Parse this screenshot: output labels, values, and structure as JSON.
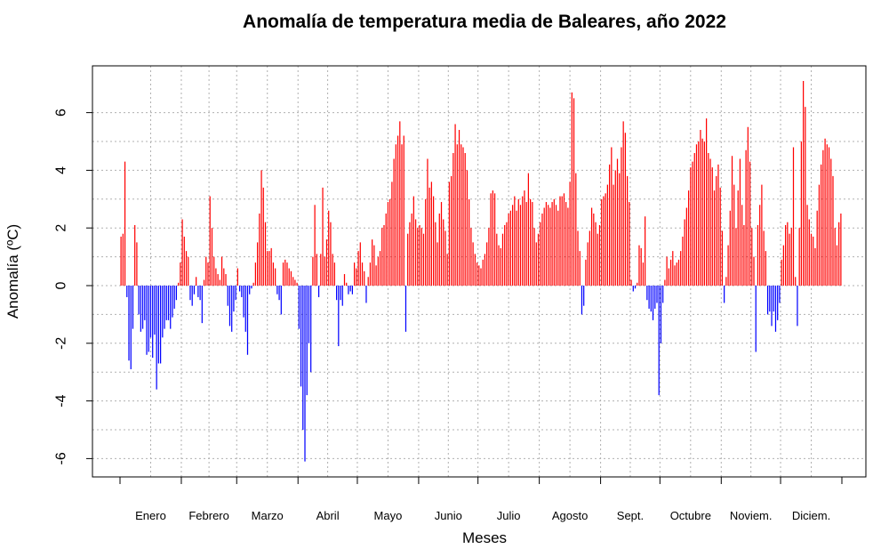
{
  "chart_data": {
    "type": "bar",
    "title": "Anomalía de temperatura media de Baleares, año 2022",
    "xlabel": "Meses",
    "ylabel": "Anomalía (ºC)",
    "ylim": [
      -6.5,
      7.3
    ],
    "yticks": [
      "-6",
      "-4",
      "-2",
      "0",
      "2",
      "4",
      "6"
    ],
    "grid": true,
    "positive_color": "#ff0000",
    "negative_color": "#0000ff",
    "months": [
      "Enero",
      "Febrero",
      "Marzo",
      "Abril",
      "Mayo",
      "Junio",
      "Julio",
      "Agosto",
      "Sept.",
      "Octubre",
      "Noviem.",
      "Diciem."
    ],
    "month_days": [
      31,
      28,
      31,
      30,
      31,
      30,
      31,
      31,
      30,
      31,
      30,
      31
    ],
    "series": [
      {
        "values": [
          1.7,
          1.8,
          4.3,
          -0.4,
          -2.6,
          -2.9,
          -1.5,
          2.1,
          1.5,
          -1.0,
          -1.6,
          -1.5,
          -1.2,
          -2.4,
          -2.3,
          -1.8,
          -2.5,
          -1.7,
          -3.6,
          -2.7,
          -2.7,
          -1.8,
          -1.5,
          -1.2,
          -1.2,
          -1.5,
          -1.1,
          -0.8,
          -0.5,
          0.1,
          0.8,
          2.3,
          1.7,
          1.2,
          1.0,
          -0.5,
          -0.7,
          -0.3,
          0.3,
          -0.4,
          -0.5,
          -1.3,
          0.2,
          1.0,
          0.8,
          3.1,
          2.0,
          1.0,
          0.6,
          0.4,
          0.2,
          1.0,
          0.6,
          0.4,
          -0.7,
          -1.4,
          -1.6,
          -0.9,
          -0.5,
          0.6,
          -0.2,
          -0.4,
          -1.1,
          -1.6,
          -2.4,
          -0.3,
          -0.1,
          0.1,
          0.8,
          1.5,
          2.5,
          4.0,
          3.4,
          2.2,
          1.2,
          1.2,
          1.3,
          0.8,
          0.6,
          -0.3,
          -0.5,
          -1.0,
          0.8,
          0.9,
          0.8,
          0.6,
          0.5,
          0.3,
          0.2,
          0.1,
          -1.5,
          -3.5,
          -5.0,
          -6.1,
          -3.8,
          -2.0,
          -3.0,
          1.0,
          2.8,
          1.1,
          -0.4,
          1.1,
          3.4,
          1.0,
          1.6,
          2.6,
          2.2,
          1.1,
          0.8,
          -0.5,
          -2.1,
          -0.5,
          -0.7,
          0.4,
          0.1,
          -0.3,
          -0.2,
          -0.3,
          0.8,
          0.6,
          1.2,
          1.5,
          0.8,
          0.5,
          -0.6,
          0.3,
          0.8,
          1.6,
          1.4,
          0.7,
          1.0,
          1.2,
          2.0,
          2.1,
          2.5,
          2.9,
          3.0,
          3.6,
          4.4,
          4.9,
          5.2,
          5.7,
          4.9,
          5.2,
          -1.6,
          1.8,
          2.2,
          2.5,
          3.1,
          2.3,
          2.0,
          2.1,
          2.0,
          1.8,
          3.0,
          4.4,
          3.4,
          3.6,
          3.1,
          2.2,
          1.5,
          2.5,
          2.9,
          2.3,
          1.9,
          1.1,
          3.6,
          3.8,
          4.6,
          5.6,
          4.9,
          5.4,
          4.9,
          4.8,
          4.6,
          4.0,
          3.0,
          2.0,
          1.5,
          1.1,
          0.8,
          0.7,
          0.6,
          0.9,
          1.1,
          1.5,
          2.0,
          3.2,
          3.3,
          3.2,
          1.8,
          1.4,
          1.3,
          1.8,
          2.1,
          2.2,
          2.5,
          2.6,
          2.8,
          3.1,
          2.6,
          3.0,
          2.8,
          3.1,
          3.3,
          2.9,
          3.9,
          3.0,
          2.9,
          2.0,
          1.5,
          1.8,
          2.2,
          2.5,
          2.7,
          2.9,
          2.8,
          2.7,
          2.9,
          3.0,
          2.8,
          2.6,
          3.1,
          3.1,
          3.2,
          2.9,
          2.7,
          3.6,
          6.7,
          6.5,
          3.9,
          1.9,
          1.2,
          -1.0,
          -0.7,
          0.9,
          1.5,
          1.9,
          2.7,
          2.5,
          2.2,
          1.8,
          2.1,
          3.0,
          3.1,
          3.2,
          3.5,
          4.2,
          4.8,
          3.5,
          4.0,
          4.4,
          3.9,
          4.8,
          5.7,
          5.3,
          3.8,
          2.9,
          0.2,
          -0.2,
          -0.1,
          0.1,
          1.4,
          1.3,
          0.8,
          2.4,
          -0.5,
          -0.8,
          -0.9,
          -1.2,
          -0.8,
          -0.6,
          -3.8,
          -2.0,
          -0.6,
          0.2,
          1.0,
          0.6,
          0.9,
          1.2,
          0.7,
          0.8,
          0.9,
          1.2,
          1.7,
          2.3,
          2.7,
          3.3,
          4.1,
          4.3,
          4.6,
          4.9,
          5.0,
          5.4,
          5.1,
          5.0,
          5.8,
          4.6,
          4.4,
          4.1,
          3.3,
          3.8,
          4.2,
          3.4,
          1.9,
          -0.6,
          0.3,
          1.4,
          2.6,
          4.5,
          3.5,
          2.0,
          3.3,
          4.4,
          2.8,
          2.1,
          4.7,
          5.5,
          4.3,
          2.0,
          1.0,
          -2.3,
          2.1,
          2.8,
          3.5,
          1.9,
          1.2,
          -1.0,
          -0.9,
          -1.4,
          -0.9,
          -1.6,
          -1.2,
          -0.6,
          0.9,
          1.4,
          2.1,
          2.2,
          1.8,
          2.0,
          4.8,
          0.3,
          -1.4,
          2.0,
          5.0,
          7.1,
          6.2,
          2.8,
          2.3,
          1.8,
          1.7,
          1.3,
          2.6,
          3.5,
          4.2,
          4.7,
          5.1,
          4.9,
          4.8,
          4.4,
          3.8,
          2.0,
          1.4,
          2.2,
          2.5
        ]
      }
    ]
  }
}
